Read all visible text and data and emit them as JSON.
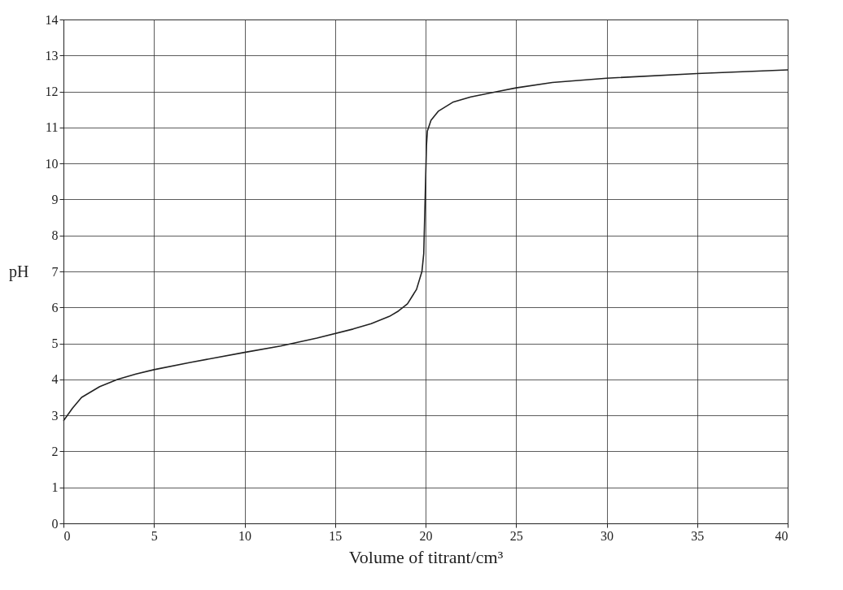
{
  "chart_data": {
    "type": "line",
    "xlabel": "Volume of titrant/cm³",
    "ylabel": "pH",
    "x": [
      0,
      0.5,
      1,
      2,
      3,
      4,
      5,
      7,
      10,
      12,
      14,
      16,
      17,
      18,
      18.5,
      19,
      19.5,
      19.8,
      19.9,
      19.95,
      20,
      20.05,
      20.1,
      20.3,
      20.7,
      21.5,
      22.5,
      24,
      25,
      27,
      30,
      35,
      40
    ],
    "series": [
      {
        "color": "#222222",
        "values": [
          2.85,
          3.2,
          3.5,
          3.8,
          4.0,
          4.15,
          4.27,
          4.47,
          4.75,
          4.93,
          5.15,
          5.4,
          5.55,
          5.75,
          5.9,
          6.1,
          6.5,
          7.0,
          7.5,
          8.5,
          9.5,
          10.5,
          10.9,
          11.2,
          11.45,
          11.7,
          11.85,
          12.0,
          12.1,
          12.25,
          12.37,
          12.5,
          12.6
        ]
      }
    ],
    "xlim": [
      0,
      40
    ],
    "xticks": [
      0,
      5,
      10,
      15,
      20,
      25,
      30,
      35,
      40
    ],
    "ylim": [
      0,
      14
    ],
    "yticks": [
      0,
      1,
      2,
      3,
      4,
      5,
      6,
      7,
      8,
      9,
      10,
      11,
      12,
      13,
      14
    ],
    "grid": true
  }
}
